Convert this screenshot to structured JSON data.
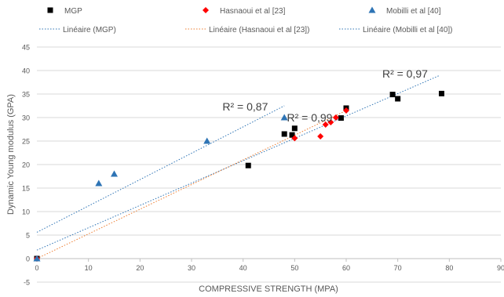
{
  "chart_data": {
    "type": "scatter",
    "xlabel": "COMPRESSIVE STRENGTH (MPA)",
    "ylabel": "Dynamic  Young modulus (GPA)",
    "xlim": [
      0,
      90
    ],
    "ylim": [
      -5,
      45
    ],
    "x_ticks": [
      "0",
      "10",
      "20",
      "30",
      "40",
      "50",
      "60",
      "70",
      "80",
      "90"
    ],
    "y_ticks": [
      "-5",
      "0",
      "5",
      "10",
      "15",
      "20",
      "25",
      "30",
      "35",
      "40",
      "45"
    ],
    "grid": "horizontal",
    "legend_position": "top",
    "series": [
      {
        "name": "MGP",
        "marker": "square",
        "color": "#000000",
        "points": [
          [
            0,
            0
          ],
          [
            41,
            19.8
          ],
          [
            48,
            26.5
          ],
          [
            49.5,
            26.3
          ],
          [
            50,
            27.7
          ],
          [
            59,
            29.9
          ],
          [
            60,
            32
          ],
          [
            69,
            34.9
          ],
          [
            70,
            34
          ],
          [
            78.5,
            35.1
          ]
        ]
      },
      {
        "name": "Hasnaoui et al [23]",
        "marker": "diamond",
        "color": "#ff0000",
        "points": [
          [
            0,
            0
          ],
          [
            50,
            25.6
          ],
          [
            55,
            26
          ],
          [
            56,
            28.5
          ],
          [
            57,
            29
          ],
          [
            58,
            30
          ],
          [
            60,
            31.5
          ]
        ]
      },
      {
        "name": "Mobilli et al [40]",
        "marker": "triangle",
        "color": "#2e74b5",
        "points": [
          [
            0,
            0
          ],
          [
            12,
            16
          ],
          [
            15,
            18
          ],
          [
            33,
            25
          ],
          [
            48,
            30
          ]
        ]
      }
    ],
    "trendlines": [
      {
        "name": "Linéaire (MGP)",
        "series": "MGP",
        "color": "#2e74b5",
        "x": [
          0,
          78
        ],
        "y": [
          1.8,
          38.9
        ]
      },
      {
        "name": "Linéaire (Hasnaoui et al [23])",
        "series": "Hasnaoui et al [23]",
        "color": "#ed7d31",
        "x": [
          0,
          60
        ],
        "y": [
          0,
          31.5
        ]
      },
      {
        "name": "Linéaire (Mobilli et al [40])",
        "series": "Mobilli et al [40]",
        "color": "#2e74b5",
        "x": [
          0,
          48
        ],
        "y": [
          5.6,
          32.5
        ]
      }
    ],
    "annotations": [
      {
        "text": "R² = 0,97",
        "x": 67,
        "y": 38.5
      },
      {
        "text": "R² = 0,87",
        "x": 36,
        "y": 31.5
      },
      {
        "text": "R² = 0,99",
        "x": 48.5,
        "y": 29.2
      }
    ]
  }
}
